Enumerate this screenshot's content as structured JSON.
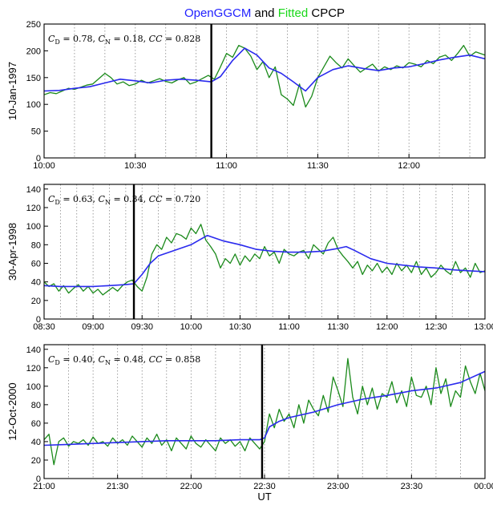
{
  "title": {
    "part1": "OpenGGCM",
    "part2": " and ",
    "part3": "Fitted",
    "part4": " CPCP",
    "colors": {
      "openggcm": "#1f1fff",
      "fitted": "#18d818",
      "plain": "#000000"
    }
  },
  "xlabel": "UT",
  "colors": {
    "openggcm": "#2a2aee",
    "fitted": "#1b8a1b",
    "event": "#000000",
    "grid": "#888888"
  },
  "chart_data": [
    {
      "type": "line",
      "ylabel": "10-Jan-1997",
      "annotation": {
        "cd_label": "C",
        "cd_sub": "D",
        "cd_val": " = 0.78, ",
        "cn_label": "C",
        "cn_sub": "N",
        "cn_val": " = 0.18, ",
        "cc_label": "CC",
        "cc_val": " = 0.828"
      },
      "x_unit": "minutes since 10:00 UT",
      "xlim": [
        0,
        145
      ],
      "ylim": [
        0,
        250
      ],
      "yticks": [
        0,
        50,
        100,
        150,
        200,
        250
      ],
      "xticks": [
        0,
        30,
        60,
        90,
        120
      ],
      "xticklabels": [
        "10:00",
        "10:30",
        "11:00",
        "11:30",
        "12:00"
      ],
      "event_x": 55,
      "series": [
        {
          "name": "OpenGGCM",
          "x": [
            0,
            5,
            10,
            15,
            20,
            25,
            30,
            35,
            40,
            45,
            50,
            55,
            58,
            62,
            66,
            70,
            74,
            78,
            82,
            86,
            90,
            95,
            100,
            105,
            110,
            115,
            120,
            125,
            130,
            135,
            140,
            145
          ],
          "values": [
            125,
            126,
            130,
            133,
            140,
            147,
            144,
            140,
            145,
            147,
            145,
            142,
            152,
            182,
            205,
            192,
            168,
            158,
            142,
            125,
            150,
            165,
            172,
            167,
            163,
            168,
            170,
            176,
            183,
            188,
            192,
            185
          ]
        },
        {
          "name": "Fitted",
          "x": [
            0,
            2,
            4,
            6,
            8,
            10,
            12,
            14,
            16,
            18,
            20,
            22,
            24,
            26,
            28,
            30,
            32,
            34,
            36,
            38,
            40,
            42,
            44,
            46,
            48,
            50,
            52,
            54,
            56,
            58,
            60,
            62,
            64,
            66,
            68,
            70,
            72,
            74,
            76,
            78,
            80,
            82,
            84,
            86,
            88,
            90,
            92,
            94,
            96,
            98,
            100,
            102,
            104,
            106,
            108,
            110,
            112,
            114,
            116,
            118,
            120,
            122,
            124,
            126,
            128,
            130,
            132,
            134,
            136,
            138,
            140,
            142,
            145
          ],
          "values": [
            118,
            122,
            120,
            125,
            130,
            128,
            132,
            136,
            138,
            148,
            158,
            150,
            138,
            142,
            135,
            138,
            145,
            140,
            144,
            148,
            143,
            140,
            146,
            150,
            138,
            142,
            148,
            154,
            147,
            170,
            195,
            188,
            210,
            205,
            190,
            165,
            180,
            150,
            170,
            118,
            110,
            98,
            138,
            95,
            115,
            150,
            170,
            190,
            178,
            168,
            185,
            172,
            160,
            168,
            175,
            162,
            170,
            165,
            172,
            168,
            178,
            175,
            170,
            182,
            176,
            188,
            192,
            182,
            195,
            210,
            190,
            198,
            192
          ]
        }
      ]
    },
    {
      "type": "line",
      "ylabel": "30-Apr-1998",
      "annotation": {
        "cd_label": "C",
        "cd_sub": "D",
        "cd_val": " = 0.63, ",
        "cn_label": "C",
        "cn_sub": "N",
        "cn_val": " = 0.34, ",
        "cc_label": "CC",
        "cc_val": " = 0.720"
      },
      "x_unit": "minutes since 08:30 UT",
      "xlim": [
        0,
        270
      ],
      "ylim": [
        0,
        145
      ],
      "yticks": [
        0,
        20,
        40,
        60,
        80,
        100,
        120,
        140
      ],
      "xticks": [
        0,
        30,
        60,
        90,
        120,
        150,
        180,
        210,
        240,
        270
      ],
      "xticklabels": [
        "08:30",
        "09:00",
        "09:30",
        "10:00",
        "10:30",
        "11:00",
        "11:30",
        "12:00",
        "12:30",
        "13:00"
      ],
      "event_x": 55,
      "series": [
        {
          "name": "OpenGGCM",
          "x": [
            0,
            10,
            20,
            30,
            40,
            50,
            55,
            60,
            65,
            70,
            80,
            90,
            100,
            110,
            120,
            130,
            140,
            150,
            160,
            170,
            180,
            185,
            190,
            200,
            210,
            220,
            230,
            240,
            250,
            260,
            270
          ],
          "values": [
            36,
            35,
            35,
            35,
            36,
            37,
            38,
            48,
            60,
            68,
            74,
            80,
            90,
            84,
            80,
            75,
            73,
            72,
            72,
            73,
            76,
            78,
            74,
            65,
            60,
            58,
            56,
            55,
            53,
            52,
            51
          ]
        },
        {
          "name": "Fitted",
          "x": [
            0,
            3,
            6,
            9,
            12,
            15,
            18,
            21,
            24,
            27,
            30,
            33,
            36,
            39,
            42,
            45,
            48,
            51,
            54,
            57,
            60,
            63,
            66,
            69,
            72,
            75,
            78,
            81,
            84,
            87,
            90,
            93,
            96,
            99,
            102,
            105,
            108,
            111,
            114,
            117,
            120,
            123,
            126,
            129,
            132,
            135,
            138,
            141,
            144,
            147,
            150,
            153,
            156,
            159,
            162,
            165,
            168,
            171,
            174,
            177,
            180,
            183,
            186,
            189,
            192,
            195,
            198,
            201,
            204,
            207,
            210,
            213,
            216,
            219,
            222,
            225,
            228,
            231,
            234,
            237,
            240,
            243,
            246,
            249,
            252,
            255,
            258,
            261,
            264,
            267,
            270
          ],
          "values": [
            40,
            35,
            38,
            30,
            36,
            28,
            33,
            37,
            30,
            35,
            28,
            32,
            26,
            30,
            34,
            30,
            36,
            40,
            42,
            35,
            30,
            45,
            70,
            80,
            75,
            88,
            82,
            92,
            90,
            86,
            98,
            92,
            102,
            85,
            78,
            70,
            55,
            65,
            60,
            70,
            58,
            68,
            62,
            70,
            65,
            78,
            68,
            72,
            60,
            75,
            70,
            68,
            72,
            74,
            65,
            80,
            75,
            70,
            82,
            88,
            75,
            68,
            62,
            55,
            62,
            48,
            58,
            52,
            60,
            50,
            56,
            48,
            60,
            52,
            58,
            50,
            62,
            48,
            55,
            45,
            50,
            58,
            52,
            48,
            62,
            50,
            55,
            45,
            60,
            50,
            52
          ]
        }
      ]
    },
    {
      "type": "line",
      "ylabel": "12-Oct-2000",
      "annotation": {
        "cd_label": "C",
        "cd_sub": "D",
        "cd_val": " = 0.40, ",
        "cn_label": "C",
        "cn_sub": "N",
        "cn_val": " = 0.48, ",
        "cc_label": "CC",
        "cc_val": " = 0.858"
      },
      "x_unit": "minutes since 21:00 UT",
      "xlim": [
        0,
        180
      ],
      "ylim": [
        0,
        145
      ],
      "yticks": [
        0,
        20,
        40,
        60,
        80,
        100,
        120,
        140
      ],
      "xticks": [
        0,
        30,
        60,
        90,
        120,
        150,
        180
      ],
      "xticklabels": [
        "21:00",
        "21:30",
        "22:00",
        "22:30",
        "23:00",
        "23:30",
        "00:00"
      ],
      "event_x": 89,
      "series": [
        {
          "name": "OpenGGCM",
          "x": [
            0,
            10,
            20,
            30,
            40,
            50,
            60,
            70,
            80,
            88,
            90,
            92,
            96,
            100,
            110,
            120,
            130,
            140,
            150,
            160,
            170,
            180
          ],
          "values": [
            36,
            37,
            38,
            39,
            40,
            41,
            41,
            41,
            42,
            42,
            44,
            56,
            62,
            66,
            72,
            80,
            86,
            90,
            95,
            98,
            104,
            116
          ]
        },
        {
          "name": "Fitted",
          "x": [
            0,
            2,
            4,
            6,
            8,
            10,
            12,
            14,
            16,
            18,
            20,
            22,
            24,
            26,
            28,
            30,
            32,
            34,
            36,
            38,
            40,
            42,
            44,
            46,
            48,
            50,
            52,
            54,
            56,
            58,
            60,
            62,
            64,
            66,
            68,
            70,
            72,
            74,
            76,
            78,
            80,
            82,
            84,
            86,
            88,
            90,
            92,
            94,
            96,
            98,
            100,
            102,
            104,
            106,
            108,
            110,
            112,
            114,
            116,
            118,
            120,
            122,
            124,
            126,
            128,
            130,
            132,
            134,
            136,
            138,
            140,
            142,
            144,
            146,
            148,
            150,
            152,
            154,
            156,
            158,
            160,
            162,
            164,
            166,
            168,
            170,
            172,
            174,
            176,
            178,
            180
          ],
          "values": [
            42,
            48,
            15,
            40,
            44,
            35,
            40,
            38,
            42,
            36,
            45,
            38,
            40,
            35,
            44,
            38,
            42,
            36,
            46,
            40,
            34,
            44,
            38,
            48,
            36,
            42,
            30,
            44,
            38,
            32,
            46,
            38,
            34,
            42,
            36,
            30,
            44,
            38,
            42,
            35,
            40,
            30,
            44,
            38,
            32,
            40,
            70,
            55,
            75,
            62,
            70,
            55,
            80,
            60,
            85,
            75,
            68,
            90,
            72,
            110,
            95,
            78,
            130,
            88,
            70,
            100,
            80,
            98,
            75,
            92,
            88,
            105,
            82,
            95,
            78,
            110,
            90,
            88,
            100,
            80,
            120,
            92,
            108,
            78,
            95,
            88,
            122,
            105,
            92,
            114,
            95
          ]
        }
      ]
    }
  ]
}
